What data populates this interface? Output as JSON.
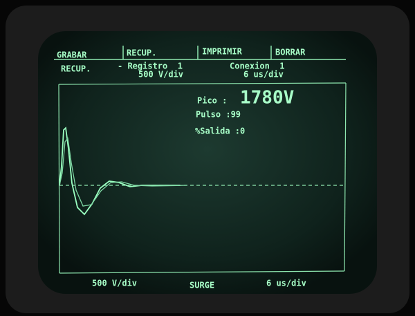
{
  "menu": [
    "GRABAR",
    "RECUP.",
    "IMPRIMIR",
    "BORRAR"
  ],
  "header": {
    "mode": "RECUP.",
    "record": "- Registro  1",
    "connection": "Conexion  1",
    "volts_per_div": "500 V/div",
    "time_per_div": "6 us/div"
  },
  "readouts": {
    "peak_label": "Pico :",
    "peak_value": "1780V",
    "pulse": "Pulso :99",
    "output": "%Salida :0"
  },
  "footer": {
    "volts_per_div": "500 V/div",
    "mode": "SURGE",
    "time_per_div": "6 us/div"
  }
}
